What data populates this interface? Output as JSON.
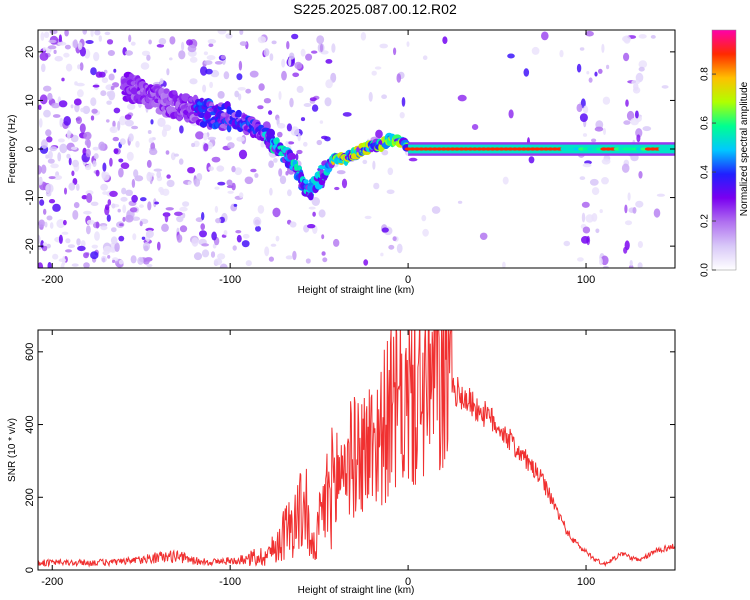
{
  "title": "S225.2025.087.00.12.R02",
  "colors": {
    "colorbar_stops": [
      "#ffffff",
      "#d8c8f8",
      "#b070f0",
      "#7a00f0",
      "#2020ff",
      "#00c8ff",
      "#00ff90",
      "#b0ff00",
      "#ffc000",
      "#ff2a00",
      "#ff00aa"
    ],
    "snr_line": "#f03030"
  },
  "chart_data": [
    {
      "type": "heatmap",
      "title": "S225.2025.087.00.12.R02",
      "xlabel": "Height of straight line (km)",
      "ylabel": "Frequency (Hz)",
      "xlim": [
        -208,
        150
      ],
      "ylim": [
        -24.5,
        24.5
      ],
      "x_ticks": [
        "-200",
        "-100",
        "0",
        "100"
      ],
      "x_tick_values": [
        -200,
        -100,
        0,
        100
      ],
      "y_ticks": [
        "20",
        "10",
        "0",
        "-10",
        "-20"
      ],
      "y_tick_values": [
        20,
        10,
        0,
        -10,
        -20
      ],
      "ridge": {
        "x": [
          -160,
          -150,
          -140,
          -130,
          -120,
          -110,
          -100,
          -90,
          -80,
          -70,
          -65,
          -60,
          -56,
          -52,
          -48,
          -44,
          -40,
          -35,
          -30,
          -25,
          -20,
          -15,
          -10,
          -6,
          -3,
          0,
          5,
          10,
          20,
          40,
          60,
          80,
          100,
          120,
          150
        ],
        "y": [
          13,
          12,
          10,
          9,
          8,
          7,
          6.5,
          5,
          3,
          -1,
          -3,
          -6,
          -9,
          -7,
          -5,
          -3,
          -2,
          -2,
          -1,
          0,
          0.5,
          1,
          2,
          2,
          1.5,
          0.5,
          0.3,
          0.2,
          0,
          0,
          0,
          0,
          0,
          0,
          0
        ]
      },
      "colorbar": {
        "label": "Normalized spectral amplitude",
        "range": [
          0,
          0.98
        ],
        "ticks": [
          "0.0",
          "0.2",
          "0.4",
          "0.6",
          "0.8"
        ],
        "tick_values": [
          0,
          0.2,
          0.4,
          0.6,
          0.8
        ]
      }
    },
    {
      "type": "line",
      "xlabel": "Height of straight line (km)",
      "ylabel": "SNR (10 * v/v)",
      "xlim": [
        -208,
        150
      ],
      "ylim": [
        0,
        660
      ],
      "x_ticks": [
        "-200",
        "-100",
        "0",
        "100"
      ],
      "x_tick_values": [
        -200,
        -100,
        0,
        100
      ],
      "y_ticks": [
        "0",
        "200",
        "400",
        "600"
      ],
      "y_tick_values": [
        0,
        200,
        400,
        600
      ],
      "series": [
        {
          "x": [
            -208,
            -180,
            -160,
            -150,
            -140,
            -130,
            -120,
            -110,
            -100,
            -90,
            -80,
            -75,
            -70,
            -65,
            -60,
            -57,
            -55,
            -52,
            -50,
            -45,
            -40,
            -35,
            -30,
            -25,
            -20,
            -15,
            -10,
            -5,
            0,
            5,
            10,
            15,
            20,
            25,
            30,
            35,
            40,
            45,
            50,
            55,
            60,
            65,
            70,
            75,
            80,
            85,
            90,
            95,
            100,
            105,
            110,
            115,
            120,
            125,
            130,
            135,
            140,
            145,
            150
          ],
          "y": [
            20,
            20,
            22,
            28,
            35,
            38,
            25,
            22,
            25,
            30,
            40,
            60,
            100,
            130,
            160,
            180,
            60,
            60,
            120,
            210,
            250,
            300,
            310,
            330,
            350,
            380,
            430,
            450,
            460,
            480,
            500,
            520,
            510,
            500,
            480,
            460,
            440,
            420,
            400,
            370,
            340,
            310,
            280,
            250,
            200,
            150,
            100,
            70,
            50,
            30,
            15,
            30,
            45,
            35,
            25,
            40,
            55,
            60,
            65
          ]
        }
      ]
    }
  ]
}
